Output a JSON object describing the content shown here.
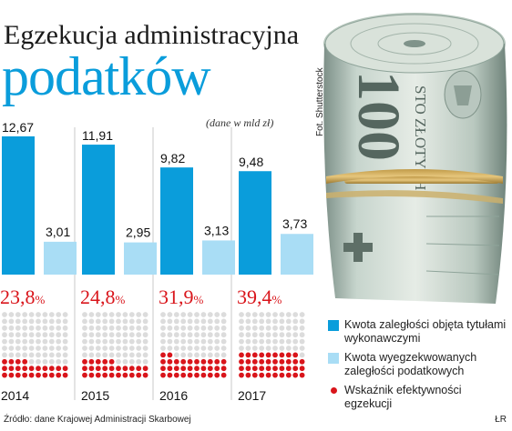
{
  "title": {
    "line1": "Egzekucja administracyjna",
    "line2": "podatków"
  },
  "unit_note": "(dane w mld zł)",
  "photo_credit": "Fot. Shutterstock",
  "source": "Źródło: dane Krajowej Administracji Skarbowej",
  "credit": "ŁR",
  "colors": {
    "dark_bar": "#0a9ddb",
    "light_bar": "#a9ddf5",
    "dot_active": "#d9151b",
    "dot_inactive": "#dcdcdc",
    "percent": "#d9151b"
  },
  "chart_data": {
    "type": "bar",
    "categories": [
      "2014",
      "2015",
      "2016",
      "2017"
    ],
    "ylim": [
      0,
      13
    ],
    "series": [
      {
        "name": "Kwota zaległości objęta tytułami wykonawczymi",
        "values": [
          12.67,
          11.91,
          9.82,
          9.48
        ],
        "labels": [
          "12,67",
          "11,91",
          "9,82",
          "9,48"
        ]
      },
      {
        "name": "Kwota wyegzekwowanych zaległości podatkowych",
        "values": [
          3.01,
          2.95,
          3.13,
          3.73
        ],
        "labels": [
          "3,01",
          "2,95",
          "3,13",
          "3,73"
        ]
      }
    ],
    "efficiency": {
      "name": "Wskaźnik efektywności egzekucji",
      "values": [
        23.8,
        24.8,
        31.9,
        39.4
      ],
      "numbers": [
        "23,8",
        "24,8",
        "31,9",
        "39,4"
      ],
      "unit": "%"
    }
  },
  "legend": [
    {
      "label": "Kwota zaległości objęta tytułami wykonawczymi",
      "kind": "dark"
    },
    {
      "label": "Kwota wyegzekwowanych zaległości podatkowych",
      "kind": "light"
    },
    {
      "label": "Wskaźnik efektywności egzekucji",
      "kind": "dot"
    }
  ]
}
